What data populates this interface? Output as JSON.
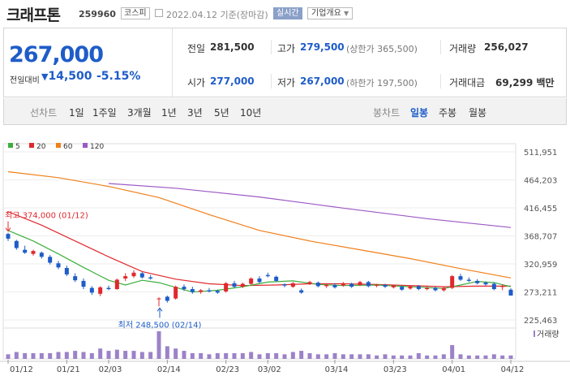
{
  "header": {
    "name": "크래프톤",
    "code": "259960",
    "market": "코스피",
    "date_text": "2022.04.12 기준(장마감)",
    "realtime_label": "실시간",
    "overview_label": "기업개요"
  },
  "quote": {
    "price": "267,000",
    "change_label": "전일대비",
    "change_abs": "14,500",
    "change_pct": "-5.15%",
    "prev_close_label": "전일",
    "prev_close": "281,500",
    "high_label": "고가",
    "high": "279,500",
    "upper_limit": "(상한가 365,500)",
    "volume_label": "거래량",
    "volume": "256,027",
    "open_label": "시가",
    "open": "277,000",
    "low_label": "저가",
    "low": "267,000",
    "lower_limit": "(하한가 197,500)",
    "turnover_label": "거래대금",
    "turnover": "69,299 백만"
  },
  "toolbar": {
    "line_chart_label": "선차트",
    "periods": [
      "1일",
      "1주일",
      "3개월",
      "1년",
      "3년",
      "5년",
      "10년"
    ],
    "candle_label": "봉차트",
    "candle_periods": [
      "일봉",
      "주봉",
      "월봉"
    ],
    "active_candle": "일봉"
  },
  "colors": {
    "up": "#e0282d",
    "down": "#1e5cc8",
    "ma5": "#3cae3c",
    "ma20": "#e0282d",
    "ma60": "#f07f1a",
    "ma120": "#9b59c6",
    "volume": "#9c82c8"
  },
  "chart_data": {
    "type": "candlestick",
    "legend": [
      "5",
      "20",
      "60",
      "120"
    ],
    "y_ticks": [
      "511,951",
      "464,203",
      "416,455",
      "368,707",
      "320,959",
      "273,211",
      "225,463"
    ],
    "ylim": [
      225463,
      511951
    ],
    "x_tick_labels": [
      "01/12",
      "01/21",
      "02/03",
      "02/14",
      "02/23",
      "03/02",
      "03/14",
      "03/23",
      "04/01",
      "04/12"
    ],
    "x_tick_index": [
      0,
      7,
      12,
      19,
      26,
      31,
      39,
      46,
      53,
      60
    ],
    "high_annotation": "최고 374,000 (01/12)",
    "low_annotation": "최저 248,500 (02/14)",
    "volume_label": "거래량",
    "candles": [
      [
        372000,
        374000,
        360000,
        364000
      ],
      [
        360000,
        362000,
        345000,
        348000
      ],
      [
        345000,
        352000,
        338000,
        340000
      ],
      [
        338000,
        345000,
        335000,
        343000
      ],
      [
        340000,
        342000,
        330000,
        333000
      ],
      [
        333000,
        336000,
        320000,
        323000
      ],
      [
        322000,
        326000,
        312000,
        315000
      ],
      [
        314000,
        318000,
        300000,
        303000
      ],
      [
        300000,
        305000,
        290000,
        293000
      ],
      [
        292000,
        296000,
        278000,
        282000
      ],
      [
        280000,
        283000,
        268000,
        272000
      ],
      [
        270000,
        283000,
        266000,
        281000
      ],
      [
        280000,
        284000,
        276000,
        278000
      ],
      [
        278000,
        296000,
        277000,
        294000
      ],
      [
        296000,
        305000,
        292000,
        300000
      ],
      [
        300000,
        310000,
        297000,
        306000
      ],
      [
        305000,
        307000,
        296000,
        298000
      ],
      [
        298000,
        302000,
        294000,
        296000
      ],
      [
        262000,
        264000,
        248500,
        262000
      ],
      [
        265000,
        267000,
        255000,
        258000
      ],
      [
        262000,
        284000,
        260000,
        282000
      ],
      [
        282000,
        286000,
        275000,
        278000
      ],
      [
        278000,
        282000,
        270000,
        273000
      ],
      [
        273000,
        278000,
        270000,
        276000
      ],
      [
        276000,
        280000,
        272000,
        274000
      ],
      [
        275000,
        277000,
        270000,
        272000
      ],
      [
        274000,
        290000,
        272000,
        288000
      ],
      [
        288000,
        292000,
        280000,
        282000
      ],
      [
        282000,
        289000,
        280000,
        287000
      ],
      [
        287000,
        298000,
        285000,
        296000
      ],
      [
        296000,
        300000,
        288000,
        290000
      ],
      [
        302000,
        306000,
        298000,
        300000
      ],
      [
        299000,
        301000,
        290000,
        292000
      ],
      [
        286000,
        288000,
        281000,
        284000
      ],
      [
        282000,
        290000,
        280000,
        288000
      ],
      [
        276000,
        279000,
        270000,
        272000
      ],
      [
        287000,
        292000,
        285000,
        290000
      ],
      [
        289000,
        291000,
        281000,
        283000
      ],
      [
        283000,
        287000,
        280000,
        285000
      ],
      [
        285000,
        288000,
        279000,
        281000
      ],
      [
        284000,
        290000,
        282000,
        288000
      ],
      [
        287000,
        289000,
        280000,
        282000
      ],
      [
        285000,
        292000,
        283000,
        290000
      ],
      [
        290000,
        292000,
        281000,
        283000
      ],
      [
        284000,
        287000,
        281000,
        285000
      ],
      [
        285000,
        287000,
        280000,
        282000
      ],
      [
        281000,
        285000,
        279000,
        284000
      ],
      [
        282000,
        284000,
        275000,
        277000
      ],
      [
        279000,
        285000,
        277000,
        283000
      ],
      [
        283000,
        285000,
        276000,
        278000
      ],
      [
        278000,
        282000,
        276000,
        280000
      ],
      [
        280000,
        282000,
        274000,
        276000
      ],
      [
        276000,
        282000,
        274000,
        280000
      ],
      [
        280000,
        302000,
        278000,
        300000
      ],
      [
        300000,
        304000,
        292000,
        294000
      ],
      [
        294000,
        298000,
        290000,
        292000
      ],
      [
        292000,
        295000,
        286000,
        288000
      ],
      [
        289000,
        291000,
        284000,
        286000
      ],
      [
        287000,
        290000,
        276000,
        278000
      ],
      [
        282000,
        286000,
        276000,
        283000
      ],
      [
        277000,
        279500,
        267000,
        267000
      ]
    ],
    "ma5": [
      [
        0,
        378000
      ],
      [
        3,
        360000
      ],
      [
        6,
        338000
      ],
      [
        9,
        315000
      ],
      [
        12,
        293000
      ],
      [
        14,
        285000
      ],
      [
        16,
        293000
      ],
      [
        18,
        289000
      ],
      [
        20,
        281000
      ],
      [
        22,
        273000
      ],
      [
        25,
        276000
      ],
      [
        28,
        282000
      ],
      [
        31,
        290000
      ],
      [
        34,
        292000
      ],
      [
        37,
        286000
      ],
      [
        40,
        284000
      ],
      [
        44,
        285000
      ],
      [
        48,
        282000
      ],
      [
        52,
        279000
      ],
      [
        54,
        285000
      ],
      [
        56,
        291000
      ],
      [
        58,
        289000
      ],
      [
        60,
        282000
      ]
    ],
    "ma20": [
      [
        0,
        410000
      ],
      [
        4,
        387000
      ],
      [
        8,
        360000
      ],
      [
        12,
        333000
      ],
      [
        16,
        308000
      ],
      [
        20,
        295000
      ],
      [
        24,
        287000
      ],
      [
        28,
        284000
      ],
      [
        32,
        285000
      ],
      [
        36,
        287000
      ],
      [
        40,
        287000
      ],
      [
        44,
        286000
      ],
      [
        48,
        284000
      ],
      [
        52,
        282000
      ],
      [
        56,
        283000
      ],
      [
        60,
        283000
      ]
    ],
    "ma60": [
      [
        0,
        478000
      ],
      [
        6,
        468000
      ],
      [
        12,
        453000
      ],
      [
        18,
        434000
      ],
      [
        24,
        405000
      ],
      [
        30,
        378000
      ],
      [
        36,
        360000
      ],
      [
        42,
        345000
      ],
      [
        48,
        330000
      ],
      [
        54,
        313000
      ],
      [
        60,
        297000
      ]
    ],
    "ma120": [
      [
        12,
        458000
      ],
      [
        20,
        450000
      ],
      [
        30,
        435000
      ],
      [
        40,
        416000
      ],
      [
        50,
        398000
      ],
      [
        60,
        383000
      ]
    ],
    "volume": [
      4,
      6,
      5,
      5,
      5,
      5,
      6,
      6,
      7,
      6,
      5,
      9,
      7,
      8,
      7,
      7,
      6,
      6,
      24,
      11,
      9,
      7,
      5,
      5,
      4,
      5,
      5,
      5,
      5,
      6,
      4,
      5,
      5,
      4,
      6,
      7,
      5,
      4,
      4,
      5,
      4,
      4,
      4,
      4,
      3,
      4,
      3,
      3,
      3,
      5,
      3,
      3,
      4,
      12,
      4,
      3,
      3,
      3,
      4,
      3,
      3
    ]
  }
}
